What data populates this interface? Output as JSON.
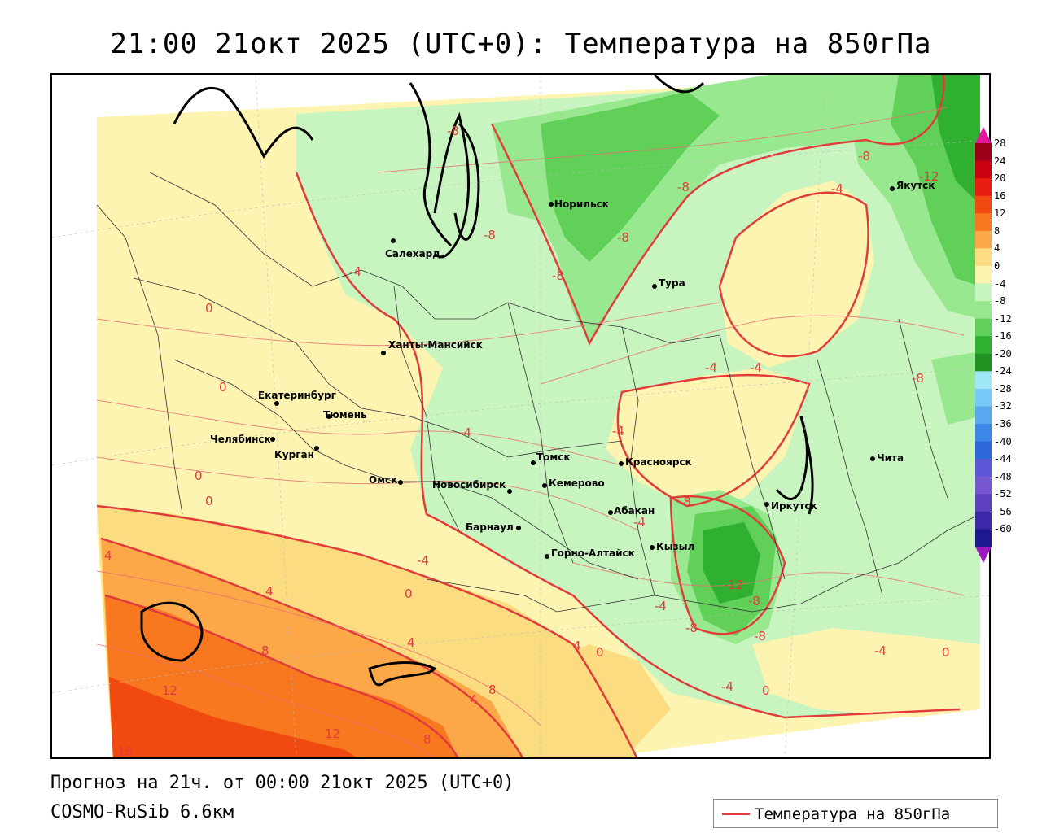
{
  "title": "21:00 21окт 2025 (UTC+0): Температура на 850гПа",
  "footer": {
    "forecast": "Прогноз на 21ч. от 00:00 21окт 2025 (UTC+0)",
    "model": "COSMO-RuSib 6.6км"
  },
  "legend": {
    "label": "Температура на 850гПа",
    "line_color": "#e03c3c"
  },
  "colorbar": {
    "ticks": [
      "28",
      "24",
      "20",
      "16",
      "12",
      "8",
      "4",
      "0",
      "-4",
      "-8",
      "-12",
      "-16",
      "-20",
      "-24",
      "-28",
      "-32",
      "-36",
      "-40",
      "-44",
      "-48",
      "-52",
      "-56",
      "-60"
    ],
    "colors": [
      "#9c0018",
      "#c80010",
      "#e81c10",
      "#f04a10",
      "#f87820",
      "#fca848",
      "#fcdc80",
      "#fcf4b0",
      "#c8f4c0",
      "#98e890",
      "#60d058",
      "#30b030",
      "#209020",
      "#a0e8f8",
      "#78c8f8",
      "#58a8f0",
      "#3c88e8",
      "#2c68d8",
      "#5c58d8",
      "#7858d0",
      "#5c40c0",
      "#3c28a8",
      "#201890"
    ],
    "top_arrow_color": "#e0189c",
    "bottom_arrow_color": "#a018c0"
  },
  "cities": [
    {
      "name": "Норильск"
    },
    {
      "name": "Салехард"
    },
    {
      "name": "Тура"
    },
    {
      "name": "Якутск"
    },
    {
      "name": "Ханты-Мансийск"
    },
    {
      "name": "Екатеринбург"
    },
    {
      "name": "Тюмень"
    },
    {
      "name": "Челябинск"
    },
    {
      "name": "Курган"
    },
    {
      "name": "Омск"
    },
    {
      "name": "Томск"
    },
    {
      "name": "Красноярск"
    },
    {
      "name": "Новосибирск"
    },
    {
      "name": "Кемерово"
    },
    {
      "name": "Барнаул"
    },
    {
      "name": "Абакан"
    },
    {
      "name": "Иркутск"
    },
    {
      "name": "Кызыл"
    },
    {
      "name": "Горно-Алтайск"
    },
    {
      "name": "Чита"
    }
  ],
  "isotherm_labels": [
    "-8",
    "-12",
    "-8",
    "-8",
    "-8",
    "-8",
    "-8",
    "-4",
    "-4",
    "-4",
    "-4",
    "-4",
    "-4",
    "-4",
    "-8",
    "-8",
    "-12",
    "-8",
    "-8",
    "-8",
    "-4",
    "-4",
    "-4",
    "0",
    "0",
    "0",
    "0",
    "0",
    "0",
    "0",
    "0",
    "-4",
    "4",
    "4",
    "4",
    "4",
    "4",
    "8",
    "8",
    "8",
    "12",
    "12",
    "16"
  ],
  "colors": {
    "temp_0_4": "#fcf4b0",
    "temp_4_8": "#fcdc80",
    "temp_8_12": "#fca848",
    "temp_12_16": "#f87820",
    "temp_16_20": "#f04a10",
    "temp_m4_0": "#c8f4c0",
    "temp_m8_m4": "#98e890",
    "temp_m12_m8": "#60d058",
    "temp_m16_m12": "#30b030",
    "isotherm": "#e03c3c"
  }
}
